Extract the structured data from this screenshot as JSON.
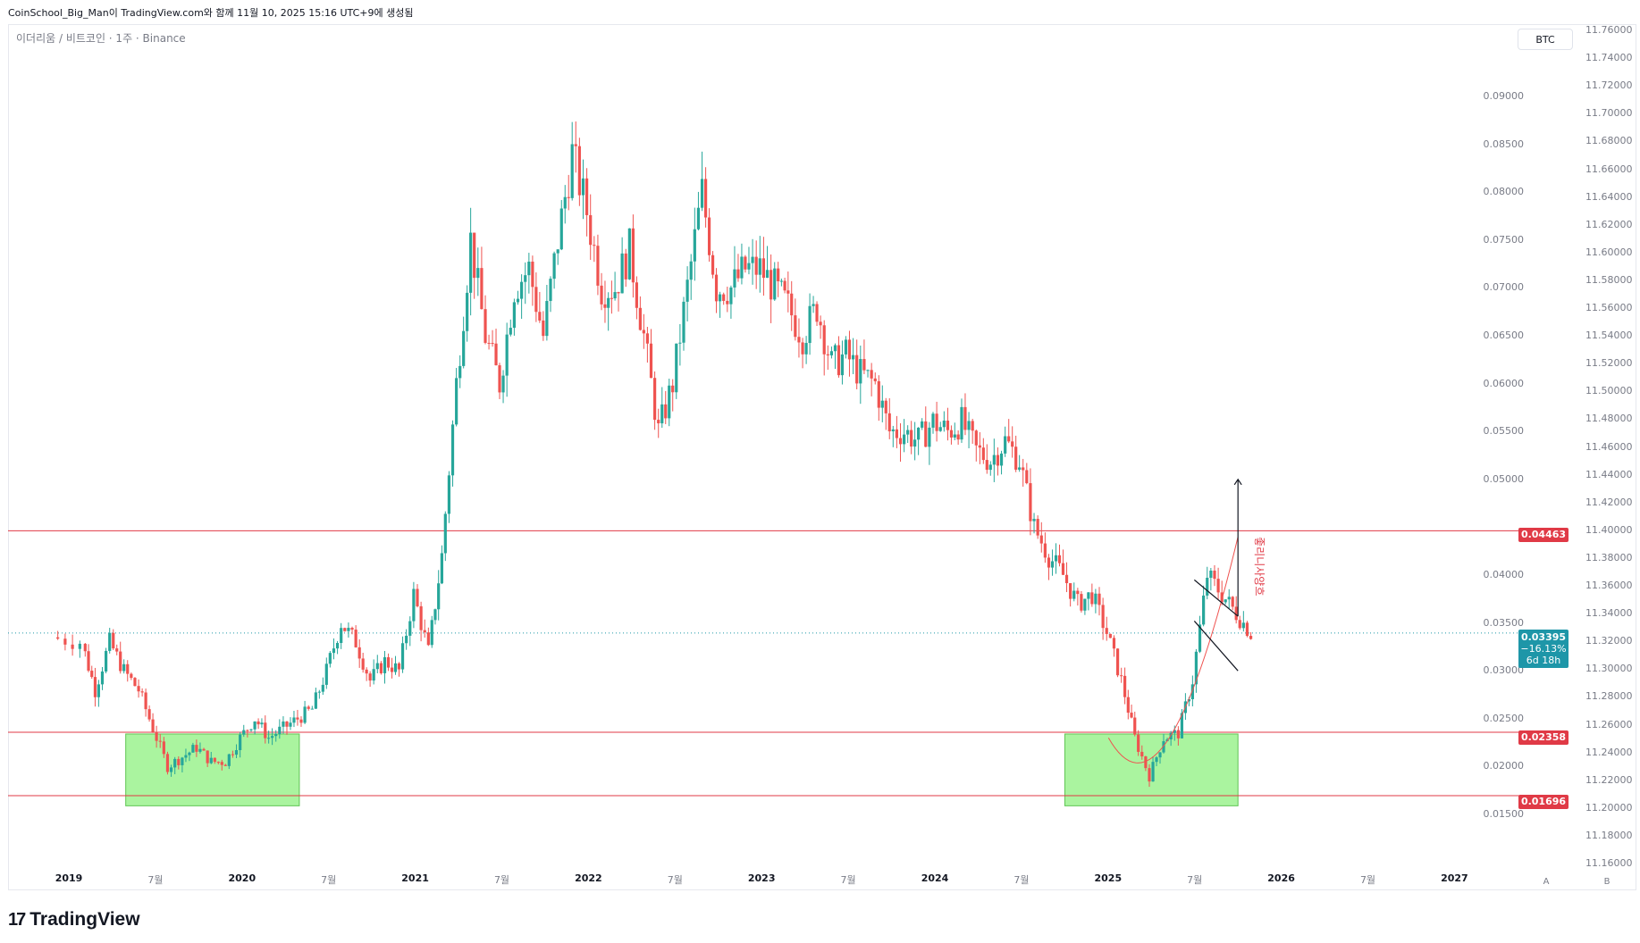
{
  "attribution": "CoinSchool_Big_Man이 TradingView.com와 함께 11월 10, 2025 15:16 UTC+9에 생성됨",
  "symbol_title": "이더리움 / 비트코인 · 1주 · Binance",
  "compare_button": "BTC",
  "logo_text": "TradingView",
  "scale_buttons": [
    "A",
    "B"
  ],
  "annotation_text": "좋리니사양흐",
  "colors": {
    "up": "#26a69a",
    "down": "#ef5350",
    "orange": "#f7931a",
    "hline": "#e03a46",
    "zone": "#8ef07f",
    "current": "#1e96a8"
  },
  "price_axis_left": [
    "0.09000",
    "0.08500",
    "0.08000",
    "0.07500",
    "0.07000",
    "0.06500",
    "0.06000",
    "0.05500",
    "0.05000",
    "0.04000",
    "0.03500",
    "0.03000",
    "0.02500",
    "0.02000",
    "0.01500"
  ],
  "price_axis_right": [
    "11.76000",
    "11.74000",
    "11.72000",
    "11.70000",
    "11.68000",
    "11.66000",
    "11.64000",
    "11.62000",
    "11.60000",
    "11.58000",
    "11.56000",
    "11.54000",
    "11.52000",
    "11.50000",
    "11.48000",
    "11.46000",
    "11.44000",
    "11.42000",
    "11.40000",
    "11.38000",
    "11.36000",
    "11.34000",
    "11.32000",
    "11.30000",
    "11.28000",
    "11.26000",
    "11.24000",
    "11.22000",
    "11.20000",
    "11.18000",
    "11.16000"
  ],
  "time_axis": [
    {
      "label": "2019",
      "year": true
    },
    {
      "label": "7월",
      "year": false
    },
    {
      "label": "2020",
      "year": true
    },
    {
      "label": "7월",
      "year": false
    },
    {
      "label": "2021",
      "year": true
    },
    {
      "label": "7월",
      "year": false
    },
    {
      "label": "2022",
      "year": true
    },
    {
      "label": "7월",
      "year": false
    },
    {
      "label": "2023",
      "year": true
    },
    {
      "label": "7월",
      "year": false
    },
    {
      "label": "2024",
      "year": true
    },
    {
      "label": "7월",
      "year": false
    },
    {
      "label": "2025",
      "year": true
    },
    {
      "label": "7월",
      "year": false
    },
    {
      "label": "2026",
      "year": true
    },
    {
      "label": "7월",
      "year": false
    },
    {
      "label": "2027",
      "year": true
    }
  ],
  "price_tags": {
    "resistance": "0.04463",
    "support_high": "0.02358",
    "support_low": "0.01696",
    "current_price": "0.03395",
    "current_change": "−16.13%",
    "current_countdown": "6d 18h"
  },
  "chart_data": {
    "type": "candlestick",
    "title": "이더리움 / 비트코인 · 1주 · Binance",
    "ylim": [
      0.0125,
      0.0955
    ],
    "horizontal_lines": [
      0.04463,
      0.02358,
      0.01696
    ],
    "current_price": 0.03395,
    "zones": [
      {
        "from": "2019-05",
        "to": "2020-05",
        "low": 0.0159,
        "high": 0.0234
      },
      {
        "from": "2024-10",
        "to": "2025-10",
        "low": 0.0159,
        "high": 0.0234
      }
    ],
    "series": [
      {
        "values": [
          [
            "2018-12",
            0.0335
          ],
          [
            "2019-02",
            0.033
          ],
          [
            "2019-03",
            0.028
          ],
          [
            "2019-04",
            0.033
          ],
          [
            "2019-05",
            0.03
          ],
          [
            "2019-06",
            0.028
          ],
          [
            "2019-07",
            0.024
          ],
          [
            "2019-08",
            0.02
          ],
          [
            "2019-09",
            0.021
          ],
          [
            "2019-10",
            0.022
          ],
          [
            "2019-11",
            0.0205
          ],
          [
            "2019-12",
            0.0205
          ],
          [
            "2020-01",
            0.023
          ],
          [
            "2020-02",
            0.025
          ],
          [
            "2020-03",
            0.023
          ],
          [
            "2020-04",
            0.024
          ],
          [
            "2020-05",
            0.025
          ],
          [
            "2020-06",
            0.026
          ],
          [
            "2020-07",
            0.03
          ],
          [
            "2020-08",
            0.035
          ],
          [
            "2020-09",
            0.033
          ],
          [
            "2020-10",
            0.029
          ],
          [
            "2020-11",
            0.031
          ],
          [
            "2020-12",
            0.03
          ],
          [
            "2021-01",
            0.038
          ],
          [
            "2021-02",
            0.032
          ],
          [
            "2021-03",
            0.042
          ],
          [
            "2021-04",
            0.06
          ],
          [
            "2021-05",
            0.075
          ],
          [
            "2021-06",
            0.065
          ],
          [
            "2021-07",
            0.06
          ],
          [
            "2021-08",
            0.07
          ],
          [
            "2021-09",
            0.072
          ],
          [
            "2021-10",
            0.065
          ],
          [
            "2021-11",
            0.075
          ],
          [
            "2021-12",
            0.084
          ],
          [
            "2022-01",
            0.078
          ],
          [
            "2022-02",
            0.07
          ],
          [
            "2022-03",
            0.07
          ],
          [
            "2022-04",
            0.074
          ],
          [
            "2022-05",
            0.065
          ],
          [
            "2022-06",
            0.055
          ],
          [
            "2022-07",
            0.06
          ],
          [
            "2022-08",
            0.07
          ],
          [
            "2022-09",
            0.08
          ],
          [
            "2022-10",
            0.07
          ],
          [
            "2022-11",
            0.07
          ],
          [
            "2022-12",
            0.072
          ],
          [
            "2023-01",
            0.072
          ],
          [
            "2023-02",
            0.07
          ],
          [
            "2023-03",
            0.068
          ],
          [
            "2023-04",
            0.065
          ],
          [
            "2023-05",
            0.068
          ],
          [
            "2023-06",
            0.062
          ],
          [
            "2023-07",
            0.063
          ],
          [
            "2023-08",
            0.061
          ],
          [
            "2023-09",
            0.06
          ],
          [
            "2023-10",
            0.055
          ],
          [
            "2023-11",
            0.055
          ],
          [
            "2023-12",
            0.054
          ],
          [
            "2024-01",
            0.056
          ],
          [
            "2024-02",
            0.055
          ],
          [
            "2024-03",
            0.056
          ],
          [
            "2024-04",
            0.053
          ],
          [
            "2024-05",
            0.052
          ],
          [
            "2024-06",
            0.054
          ],
          [
            "2024-07",
            0.052
          ],
          [
            "2024-08",
            0.045
          ],
          [
            "2024-09",
            0.042
          ],
          [
            "2024-10",
            0.04
          ],
          [
            "2024-11",
            0.037
          ],
          [
            "2024-12",
            0.038
          ],
          [
            "2025-01",
            0.034
          ],
          [
            "2025-02",
            0.029
          ],
          [
            "2025-03",
            0.023
          ],
          [
            "2025-04",
            0.019
          ],
          [
            "2025-05",
            0.023
          ],
          [
            "2025-06",
            0.0235
          ],
          [
            "2025-07",
            0.029
          ],
          [
            "2025-08",
            0.04
          ],
          [
            "2025-09",
            0.038
          ],
          [
            "2025-10",
            0.036
          ],
          [
            "2025-11",
            0.03395
          ]
        ]
      }
    ]
  }
}
